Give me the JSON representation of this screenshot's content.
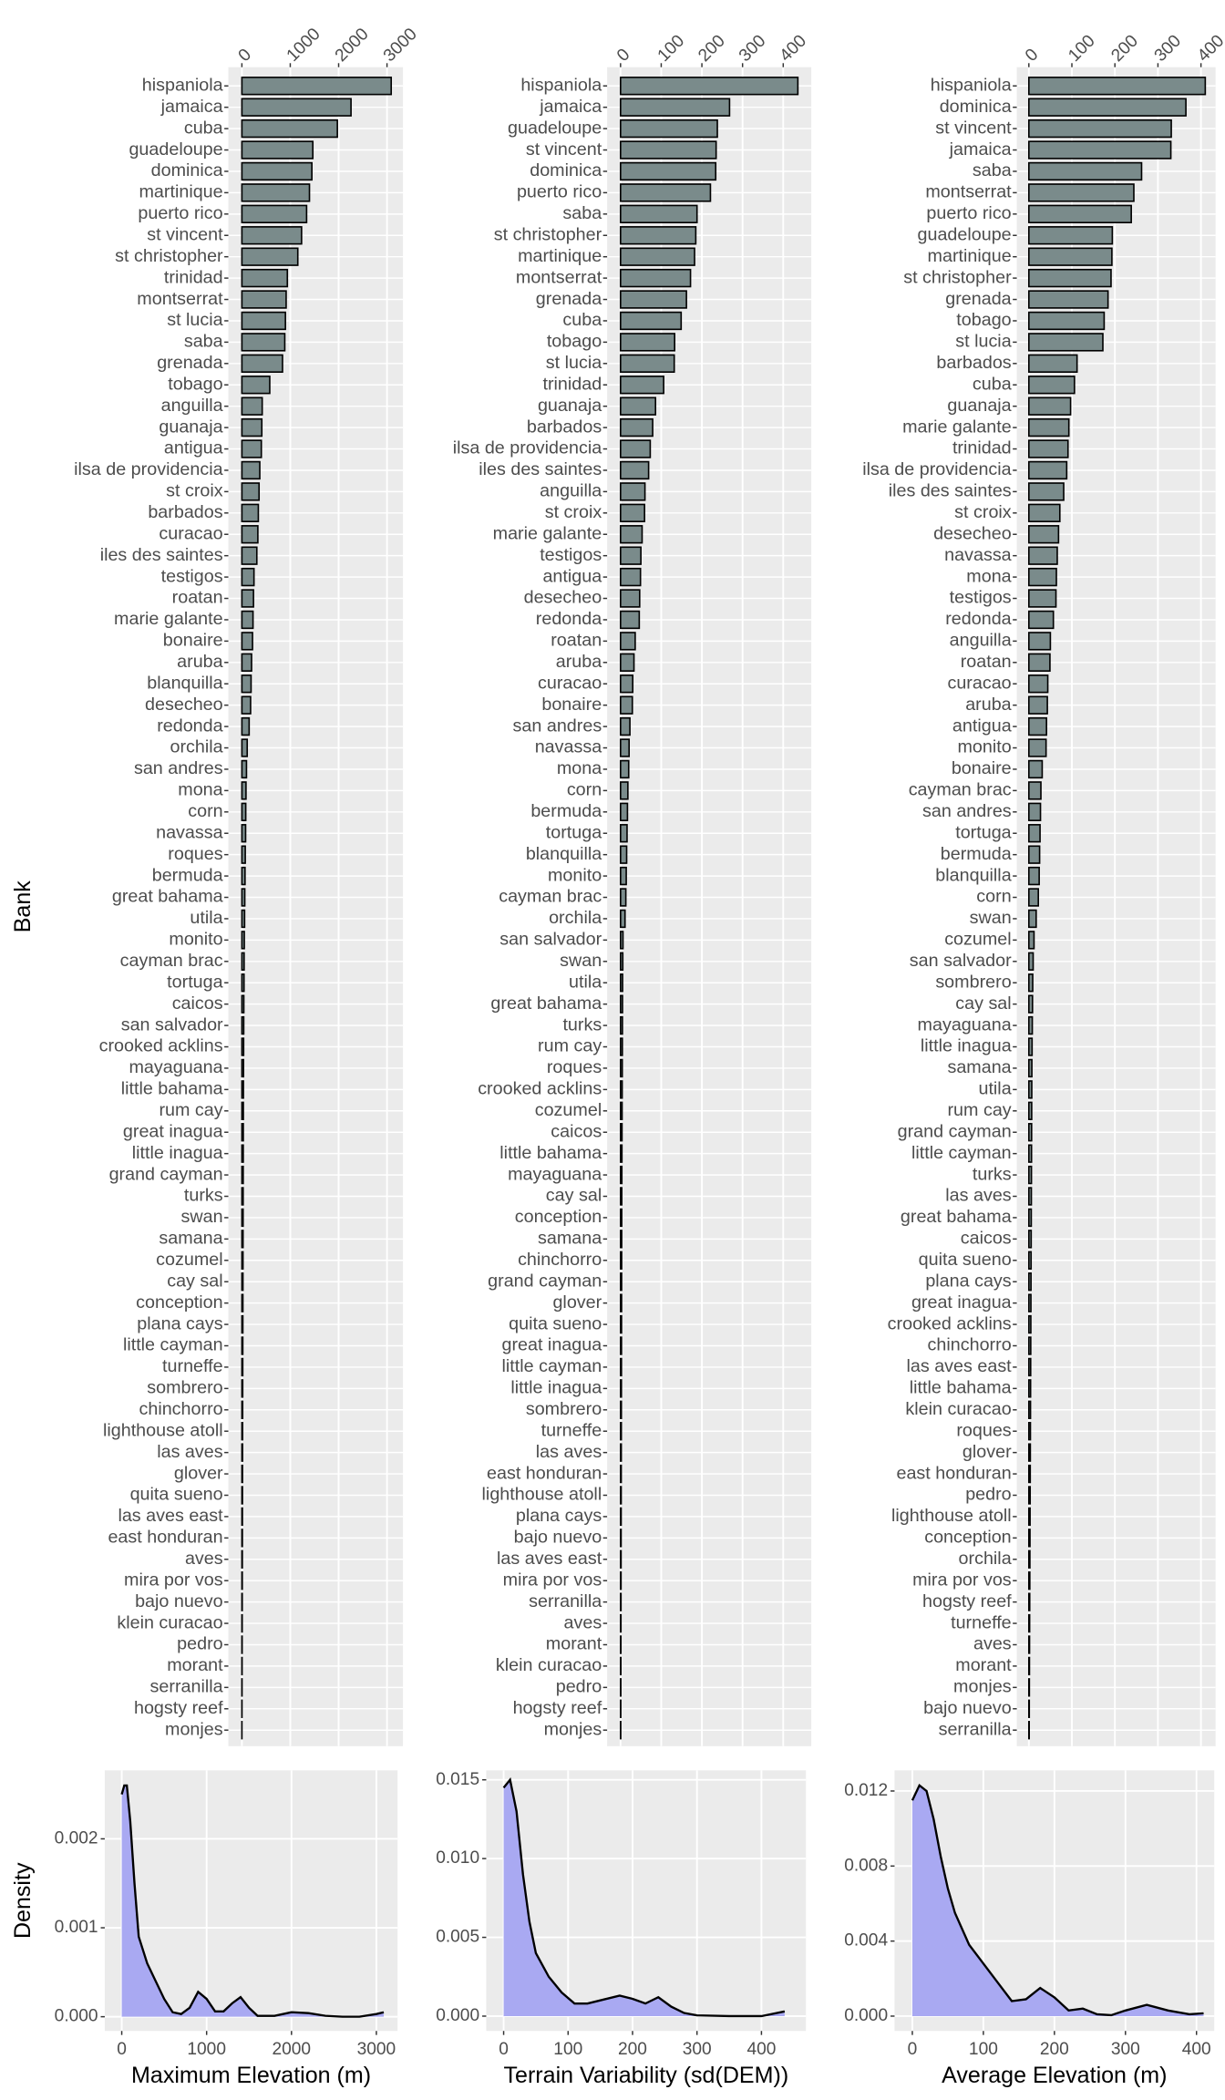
{
  "chart_data": [
    {
      "type": "barh",
      "ylabel": "Bank",
      "color": "#7a8b8b",
      "categories": [
        "hispaniola",
        "jamaica",
        "cuba",
        "guadeloupe",
        "dominica",
        "martinique",
        "puerto rico",
        "st vincent",
        "st christopher",
        "trinidad",
        "montserrat",
        "st lucia",
        "saba",
        "grenada",
        "tobago",
        "anguilla",
        "guanaja",
        "antigua",
        "ilsa de providencia",
        "st croix",
        "barbados",
        "curacao",
        "iles des saintes",
        "testigos",
        "roatan",
        "marie galante",
        "bonaire",
        "aruba",
        "blanquilla",
        "desecheo",
        "redonda",
        "orchila",
        "san andres",
        "mona",
        "corn",
        "navassa",
        "roques",
        "bermuda",
        "great bahama",
        "utila",
        "monito",
        "cayman brac",
        "tortuga",
        "caicos",
        "san salvador",
        "crooked acklins",
        "mayaguana",
        "little bahama",
        "rum cay",
        "great inagua",
        "little inagua",
        "grand cayman",
        "turks",
        "swan",
        "samana",
        "cozumel",
        "cay sal",
        "conception",
        "plana cays",
        "little cayman",
        "turneffe",
        "sombrero",
        "chinchorro",
        "lighthouse atoll",
        "las aves",
        "glover",
        "quita sueno",
        "las aves east",
        "east honduran",
        "aves",
        "mira por vos",
        "bajo nuevo",
        "klein curacao",
        "pedro",
        "morant",
        "serranilla",
        "hogsty reef",
        "monjes"
      ],
      "values": [
        3087,
        2256,
        1974,
        1467,
        1447,
        1397,
        1338,
        1234,
        1156,
        940,
        915,
        900,
        887,
        840,
        576,
        420,
        412,
        402,
        370,
        355,
        340,
        330,
        309,
        250,
        240,
        230,
        220,
        200,
        190,
        180,
        150,
        110,
        95,
        85,
        80,
        77,
        70,
        65,
        60,
        56,
        50,
        46,
        44,
        40,
        38,
        36,
        34,
        32,
        30,
        29,
        28,
        27,
        26,
        25,
        24,
        23,
        22,
        21,
        20,
        19,
        18,
        17,
        16,
        15,
        14,
        13,
        12,
        11,
        10,
        9,
        8,
        7,
        6,
        5,
        4,
        3,
        2,
        1
      ],
      "xlim": [
        -280,
        3330
      ],
      "xticks": [
        0,
        1000,
        2000,
        3000
      ]
    },
    {
      "type": "barh",
      "color": "#7a8b8b",
      "categories": [
        "hispaniola",
        "jamaica",
        "guadeloupe",
        "st vincent",
        "dominica",
        "puerto rico",
        "saba",
        "st christopher",
        "martinique",
        "montserrat",
        "grenada",
        "cuba",
        "tobago",
        "st lucia",
        "trinidad",
        "guanaja",
        "barbados",
        "ilsa de providencia",
        "iles des saintes",
        "anguilla",
        "st croix",
        "marie galante",
        "testigos",
        "antigua",
        "desecheo",
        "redonda",
        "roatan",
        "aruba",
        "curacao",
        "bonaire",
        "san andres",
        "navassa",
        "mona",
        "corn",
        "bermuda",
        "tortuga",
        "blanquilla",
        "monito",
        "cayman brac",
        "orchila",
        "san salvador",
        "swan",
        "utila",
        "great bahama",
        "turks",
        "rum cay",
        "roques",
        "crooked acklins",
        "cozumel",
        "caicos",
        "little bahama",
        "mayaguana",
        "cay sal",
        "conception",
        "samana",
        "chinchorro",
        "grand cayman",
        "glover",
        "quita sueno",
        "great inagua",
        "little cayman",
        "little inagua",
        "sombrero",
        "turneffe",
        "las aves",
        "east honduran",
        "lighthouse atoll",
        "plana cays",
        "bajo nuevo",
        "las aves east",
        "mira por vos",
        "serranilla",
        "aves",
        "morant",
        "klein curacao",
        "pedro",
        "hogsty reef",
        "monjes"
      ],
      "values": [
        436,
        268,
        238,
        235,
        234,
        221,
        188,
        185,
        182,
        172,
        162,
        149,
        133,
        132,
        106,
        86,
        79,
        73,
        69,
        60,
        59,
        53,
        50,
        49,
        47,
        46,
        36,
        33,
        30,
        29,
        23,
        21,
        20,
        18,
        17,
        16,
        15,
        14,
        13,
        11,
        6,
        5.5,
        5,
        4.8,
        4.6,
        4.4,
        4.2,
        4,
        3.8,
        3.6,
        3.4,
        3.2,
        3,
        2.9,
        2.8,
        2.7,
        2.6,
        2.5,
        2.4,
        2.3,
        2.2,
        2.1,
        2,
        1.9,
        1.8,
        1.7,
        1.6,
        1.5,
        1.4,
        1.3,
        1.2,
        1.1,
        1,
        0.9,
        0.8,
        0.7,
        0.6,
        0.5
      ],
      "xlim": [
        -33,
        469
      ],
      "xticks": [
        0,
        100,
        200,
        300,
        400
      ]
    },
    {
      "type": "barh",
      "color": "#7a8b8b",
      "categories": [
        "hispaniola",
        "dominica",
        "st vincent",
        "jamaica",
        "saba",
        "montserrat",
        "puerto rico",
        "guadeloupe",
        "martinique",
        "st christopher",
        "grenada",
        "tobago",
        "st lucia",
        "barbados",
        "cuba",
        "guanaja",
        "marie galante",
        "trinidad",
        "ilsa de providencia",
        "iles des saintes",
        "st croix",
        "desecheo",
        "navassa",
        "mona",
        "testigos",
        "redonda",
        "anguilla",
        "roatan",
        "curacao",
        "aruba",
        "antigua",
        "monito",
        "bonaire",
        "cayman brac",
        "san andres",
        "tortuga",
        "bermuda",
        "blanquilla",
        "corn",
        "swan",
        "cozumel",
        "san salvador",
        "sombrero",
        "cay sal",
        "mayaguana",
        "little inagua",
        "samana",
        "utila",
        "rum cay",
        "grand cayman",
        "little cayman",
        "turks",
        "las aves",
        "great bahama",
        "caicos",
        "quita sueno",
        "plana cays",
        "great inagua",
        "crooked acklins",
        "chinchorro",
        "las aves east",
        "little bahama",
        "klein curacao",
        "roques",
        "glover",
        "east honduran",
        "pedro",
        "lighthouse atoll",
        "conception",
        "orchila",
        "mira por vos",
        "hogsty reef",
        "turneffe",
        "aves",
        "morant",
        "monjes",
        "bajo nuevo",
        "serranilla"
      ],
      "values": [
        410,
        365,
        331,
        330,
        262,
        244,
        238,
        194,
        193,
        191,
        184,
        175,
        172,
        112,
        106,
        97,
        93,
        91,
        88,
        81,
        72,
        69,
        66,
        64,
        63,
        57,
        50,
        49,
        44,
        43,
        41,
        40,
        31,
        28,
        27,
        26,
        25,
        24,
        22,
        17,
        12,
        10,
        9,
        8.5,
        8,
        7.5,
        7,
        6.8,
        6.6,
        6.4,
        6.2,
        6,
        5.8,
        5.6,
        5.4,
        5.2,
        5,
        4.8,
        4.6,
        4.4,
        4.2,
        4,
        3.8,
        3.6,
        3.4,
        3.2,
        3,
        2.8,
        2.6,
        2.4,
        2.2,
        2,
        1.8,
        1.6,
        1.4,
        1.2,
        1,
        0.8
      ],
      "xlim": [
        -28,
        434
      ],
      "xticks": [
        0,
        100,
        200,
        300,
        400
      ]
    },
    {
      "type": "area",
      "xlabel": "Maximum Elevation (m)",
      "ylabel": "Density",
      "color": "#a9a9f2",
      "x": [
        0,
        30,
        60,
        100,
        150,
        200,
        300,
        400,
        500,
        600,
        700,
        800,
        900,
        1000,
        1100,
        1200,
        1300,
        1400,
        1500,
        1600,
        1800,
        2000,
        2200,
        2400,
        2600,
        2800,
        3000,
        3087
      ],
      "values": [
        0.0025,
        0.0026,
        0.0026,
        0.0022,
        0.0015,
        0.0009,
        0.0006,
        0.0004,
        0.0002,
        5e-05,
        3e-05,
        0.0001,
        0.00028,
        0.0002,
        6e-05,
        6e-05,
        0.00015,
        0.00022,
        0.0001,
        1e-05,
        1e-05,
        5e-05,
        4e-05,
        1e-05,
        0,
        0,
        3e-05,
        5e-05
      ],
      "xlim": [
        -200,
        3250
      ],
      "xticks": [
        0,
        1000,
        2000,
        3000
      ],
      "ylim": [
        -0.00016,
        0.00277
      ],
      "yticks": [
        {
          "value": 0,
          "label": "0.000"
        },
        0.001,
        0.002
      ]
    },
    {
      "type": "area",
      "xlabel": "Terrain Variability (sd(DEM))",
      "color": "#a9a9f2",
      "x": [
        0,
        10,
        20,
        30,
        40,
        50,
        70,
        90,
        110,
        130,
        150,
        180,
        200,
        220,
        240,
        260,
        280,
        300,
        350,
        400,
        436
      ],
      "values": [
        0.0145,
        0.015,
        0.013,
        0.009,
        0.006,
        0.004,
        0.0025,
        0.0015,
        0.0008,
        0.0008,
        0.001,
        0.0013,
        0.0011,
        0.0008,
        0.0012,
        0.0006,
        0.0002,
        5e-05,
        0,
        0,
        0.0003
      ],
      "xlim": [
        -27,
        469
      ],
      "xticks": [
        0,
        100,
        200,
        300,
        400
      ],
      "ylim": [
        -0.00094,
        0.0156
      ],
      "yticks": [
        {
          "value": 0,
          "label": "0.000"
        },
        0.005,
        {
          "value": 0.01,
          "label": "0.010"
        },
        0.015
      ]
    },
    {
      "type": "area",
      "xlabel": "Average Elevation (m)",
      "color": "#a9a9f2",
      "x": [
        0,
        10,
        20,
        30,
        40,
        50,
        60,
        80,
        100,
        120,
        140,
        160,
        180,
        200,
        220,
        240,
        260,
        280,
        300,
        330,
        360,
        390,
        410
      ],
      "values": [
        0.0115,
        0.0123,
        0.012,
        0.0105,
        0.0085,
        0.0068,
        0.0055,
        0.0038,
        0.0028,
        0.0018,
        0.0008,
        0.0009,
        0.0015,
        0.001,
        0.0003,
        0.0004,
        0.0001,
        5e-05,
        0.0003,
        0.0006,
        0.0003,
        0.0001,
        0.00015
      ],
      "xlim": [
        -25,
        425
      ],
      "xticks": [
        0,
        100,
        200,
        300,
        400
      ],
      "ylim": [
        -0.00079,
        0.0131
      ],
      "yticks": [
        {
          "value": 0,
          "label": "0.000"
        },
        0.004,
        0.008,
        0.012
      ]
    }
  ]
}
